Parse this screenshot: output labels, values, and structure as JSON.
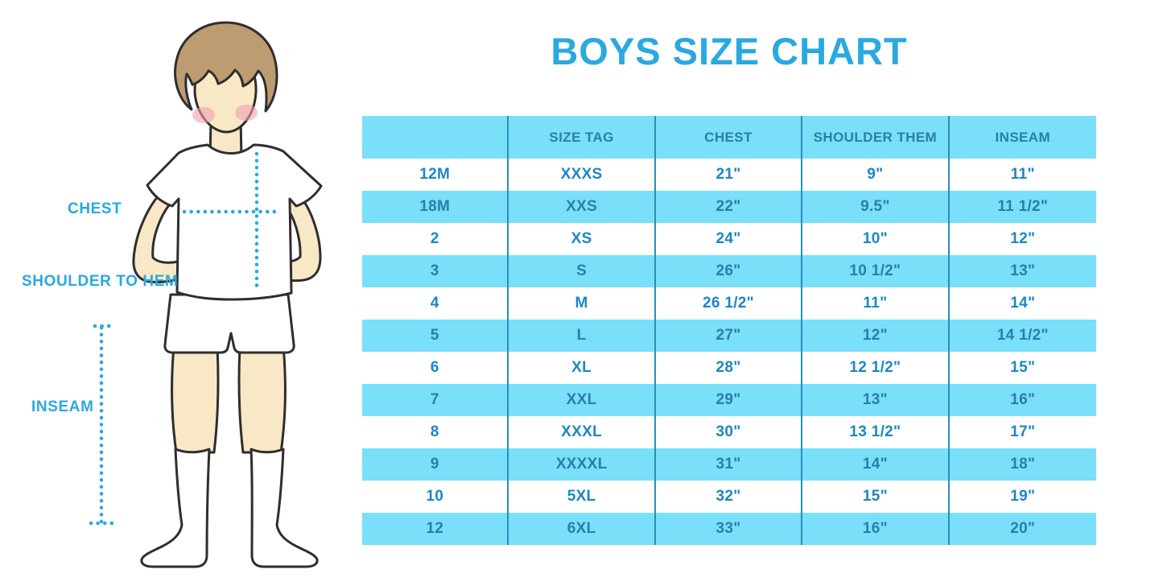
{
  "title": "BOYS SIZE CHART",
  "colors": {
    "accent": "#29A9E0",
    "band_blue": "#7ADFF8",
    "header_text": "#2A7FA8",
    "white_row_text": "#1D86C6",
    "separator": "#2490BE",
    "skin": "#F8E8C5",
    "hair": "#BC9C70",
    "blush": "#F29FB2"
  },
  "figure": {
    "labels": {
      "chest": "CHEST",
      "shoulder_to_hem": "SHOULDER TO HEM",
      "inseam": "INSEAM"
    }
  },
  "chart_data": {
    "type": "table",
    "title": "BOYS SIZE CHART",
    "columns": [
      "",
      "SIZE TAG",
      "CHEST",
      "SHOULDER THEM",
      "INSEAM"
    ],
    "rows": [
      [
        "12M",
        "XXXS",
        "21\"",
        "9\"",
        "11\""
      ],
      [
        "18M",
        "XXS",
        "22\"",
        "9.5\"",
        "11 1/2\""
      ],
      [
        "2",
        "XS",
        "24\"",
        "10\"",
        "12\""
      ],
      [
        "3",
        "S",
        "26\"",
        "10 1/2\"",
        "13\""
      ],
      [
        "4",
        "M",
        "26 1/2\"",
        "11\"",
        "14\""
      ],
      [
        "5",
        "L",
        "27\"",
        "12\"",
        "14 1/2\""
      ],
      [
        "6",
        "XL",
        "28\"",
        "12 1/2\"",
        "15\""
      ],
      [
        "7",
        "XXL",
        "29\"",
        "13\"",
        "16\""
      ],
      [
        "8",
        "XXXL",
        "30\"",
        "13 1/2\"",
        "17\""
      ],
      [
        "9",
        "XXXXL",
        "31\"",
        "14\"",
        "18\""
      ],
      [
        "10",
        "5XL",
        "32\"",
        "15\"",
        "19\""
      ],
      [
        "12",
        "6XL",
        "33\"",
        "16\"",
        "20\""
      ]
    ],
    "layout": {
      "row_striping": [
        "white",
        "light-blue"
      ],
      "header_background": "light-blue",
      "column_separators": true
    }
  }
}
